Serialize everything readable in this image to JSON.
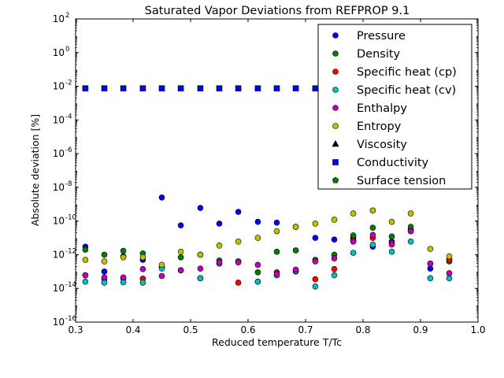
{
  "chart_data": {
    "type": "scatter",
    "title": "Saturated Vapor Deviations from REFPROP 9.1",
    "xlabel": "Reduced temperature T/Tc",
    "ylabel": "Absolute deviation [%]",
    "xlim": [
      0.3,
      1.0
    ],
    "ylim": [
      1e-16,
      100
    ],
    "yscale": "log",
    "grid": false,
    "legend_position": "top-right",
    "x_ticks": [
      0.3,
      0.4,
      0.5,
      0.6,
      0.7,
      0.8,
      0.9,
      1.0
    ],
    "x_tick_labels": [
      "0.3",
      "0.4",
      "0.5",
      "0.6",
      "0.7",
      "0.8",
      "0.9",
      "1.0"
    ],
    "y_ticks": [
      1e-16,
      1e-14,
      1e-12,
      1e-10,
      1e-08,
      1e-06,
      0.0001,
      0.01,
      1,
      100
    ],
    "y_tick_labels": [
      {
        "base": "10",
        "exp": "-16"
      },
      {
        "base": "10",
        "exp": "-14"
      },
      {
        "base": "10",
        "exp": "-12"
      },
      {
        "base": "10",
        "exp": "-10"
      },
      {
        "base": "10",
        "exp": "-8"
      },
      {
        "base": "10",
        "exp": "-6"
      },
      {
        "base": "10",
        "exp": "-4"
      },
      {
        "base": "10",
        "exp": "-2"
      },
      {
        "base": "10",
        "exp": "0"
      },
      {
        "base": "10",
        "exp": "2"
      }
    ],
    "series": [
      {
        "name": "Pressure",
        "marker": "circle",
        "color": "#0000ff",
        "x": [
          0.317,
          0.35,
          0.383,
          0.417,
          0.45,
          0.483,
          0.517,
          0.55,
          0.583,
          0.617,
          0.65,
          0.683,
          0.717,
          0.75,
          0.783,
          0.817,
          0.85,
          0.883,
          0.917,
          0.95
        ],
        "y": [
          3e-12,
          1e-13,
          8e-13,
          5e-13,
          2.5e-09,
          5.5e-11,
          6e-10,
          7e-11,
          3.5e-10,
          9e-11,
          8e-11,
          4.5e-11,
          1e-11,
          8e-12,
          1e-11,
          3e-12,
          6e-12,
          3e-11,
          1.5e-13,
          5e-13
        ]
      },
      {
        "name": "Density",
        "marker": "circle",
        "color": "#007f00",
        "x": [
          0.317,
          0.35,
          0.383,
          0.417,
          0.45,
          0.483,
          0.517,
          0.55,
          0.583,
          0.617,
          0.65,
          0.683,
          0.717,
          0.75,
          0.783,
          0.817,
          0.85,
          0.883,
          0.917,
          0.95
        ],
        "y": [
          2e-12,
          1e-12,
          1.7e-12,
          1.2e-12,
          1.8e-13,
          7e-13,
          1e-12,
          4.5e-13,
          4e-13,
          9e-14,
          1.5e-12,
          1.8e-12,
          5e-13,
          1e-12,
          1.4e-11,
          4e-11,
          1.2e-11,
          4.5e-11,
          3e-13,
          4e-13
        ]
      },
      {
        "name": "Specific heat (cp)",
        "marker": "circle",
        "color": "#ff0000",
        "x": [
          0.317,
          0.35,
          0.383,
          0.417,
          0.45,
          0.483,
          0.517,
          0.55,
          0.583,
          0.617,
          0.65,
          0.683,
          0.717,
          0.75,
          0.783,
          0.817,
          0.85,
          0.883,
          0.917,
          0.95
        ],
        "y": [
          6e-14,
          3.5e-14,
          4e-14,
          3.8e-14,
          1.8e-13,
          1.2e-13,
          4e-14,
          3e-13,
          2.2e-14,
          2.5e-14,
          9e-14,
          1e-13,
          3.5e-14,
          1.4e-13,
          7e-12,
          1e-11,
          5e-12,
          2.5e-11,
          3e-13,
          5e-13
        ]
      },
      {
        "name": "Specific heat (cv)",
        "marker": "circle",
        "color": "#00bfbf",
        "x": [
          0.317,
          0.35,
          0.383,
          0.417,
          0.45,
          0.483,
          0.517,
          0.55,
          0.583,
          0.617,
          0.65,
          0.683,
          0.717,
          0.75,
          0.783,
          0.817,
          0.85,
          0.883,
          0.917,
          0.95
        ],
        "y": [
          2.5e-14,
          2.2e-14,
          2.3e-14,
          2.2e-14,
          1.5e-13,
          1.2e-13,
          4e-14,
          3e-13,
          4e-13,
          2.5e-14,
          6e-14,
          1.1e-13,
          1.3e-14,
          6e-14,
          1.3e-12,
          4e-12,
          1.5e-12,
          6e-12,
          4e-14,
          4e-14
        ]
      },
      {
        "name": "Enthalpy",
        "marker": "circle",
        "color": "#bf00bf",
        "x": [
          0.317,
          0.35,
          0.383,
          0.417,
          0.45,
          0.483,
          0.517,
          0.55,
          0.583,
          0.617,
          0.65,
          0.683,
          0.717,
          0.75,
          0.783,
          0.817,
          0.85,
          0.883,
          0.917,
          0.95
        ],
        "y": [
          6e-14,
          4.5e-14,
          4.5e-14,
          1.4e-13,
          5.5e-14,
          1.2e-13,
          1.5e-13,
          3.5e-13,
          3.5e-13,
          2.5e-13,
          7e-14,
          1.3e-13,
          4e-13,
          6e-13,
          6e-12,
          1.5e-11,
          4e-12,
          2.5e-11,
          3e-13,
          8e-14
        ]
      },
      {
        "name": "Entropy",
        "marker": "circle",
        "color": "#bfbf00",
        "x": [
          0.317,
          0.35,
          0.383,
          0.417,
          0.45,
          0.483,
          0.517,
          0.55,
          0.583,
          0.617,
          0.65,
          0.683,
          0.717,
          0.75,
          0.783,
          0.817,
          0.85,
          0.883,
          0.917,
          0.95
        ],
        "y": [
          5e-13,
          4e-13,
          7e-13,
          7e-13,
          2.5e-13,
          1.5e-12,
          1e-12,
          3.5e-12,
          6e-12,
          1e-11,
          2.5e-11,
          4.5e-11,
          7e-11,
          1.2e-10,
          2.8e-10,
          4.2e-10,
          9e-11,
          2.8e-10,
          2.2e-12,
          8e-13
        ]
      },
      {
        "name": "Viscosity",
        "marker": "triangle",
        "color": "#000000",
        "x": [],
        "y": []
      },
      {
        "name": "Conductivity",
        "marker": "square",
        "color": "#0000ff",
        "x": [
          0.317,
          0.35,
          0.383,
          0.417,
          0.45,
          0.483,
          0.517,
          0.55,
          0.583,
          0.617,
          0.65,
          0.683,
          0.717,
          0.75,
          0.783,
          0.817,
          0.85,
          0.883,
          0.917,
          0.95
        ],
        "y": [
          0.0075,
          0.0075,
          0.0075,
          0.0075,
          0.0075,
          0.0075,
          0.0075,
          0.0075,
          0.0075,
          0.0075,
          0.0075,
          0.0075,
          0.0075,
          0.0075,
          0.0075,
          0.0075,
          0.0075,
          0.0075,
          0.0075,
          0.0075
        ]
      },
      {
        "name": "Surface tension",
        "marker": "pentagon",
        "color": "#007f00",
        "x": [],
        "y": []
      }
    ]
  }
}
